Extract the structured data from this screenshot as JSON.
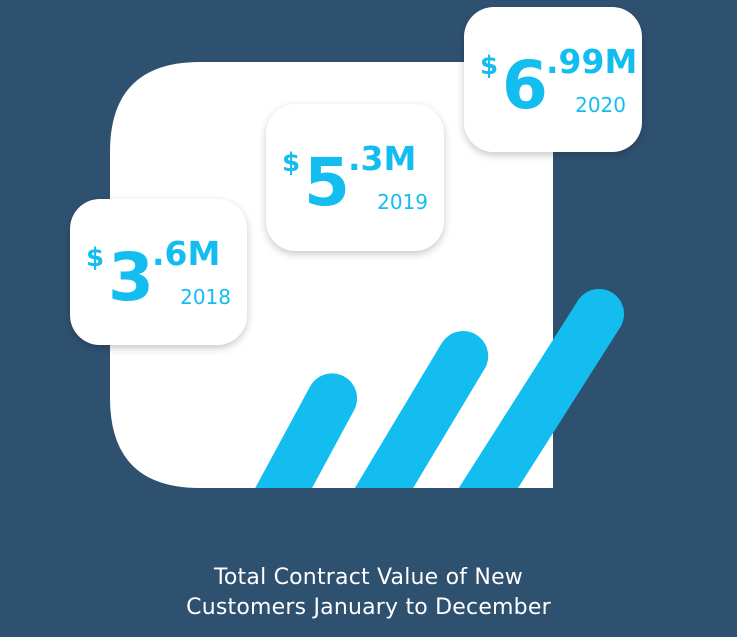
{
  "chart_data": {
    "type": "bar",
    "title": "Total Contract Value of New Customers January to December",
    "title_lines": [
      "Total Contract Value of New",
      "Customers January to December"
    ],
    "categories": [
      "2018",
      "2019",
      "2020"
    ],
    "values": [
      3.6,
      5.3,
      6.99
    ],
    "value_labels": [
      {
        "currency": "$",
        "whole": "3",
        "fraction": ".6",
        "unit": "M",
        "year": "2018"
      },
      {
        "currency": "$",
        "whole": "5",
        "fraction": ".3",
        "unit": "M",
        "year": "2019"
      },
      {
        "currency": "$",
        "whole": "6",
        "fraction": ".99",
        "unit": "M",
        "year": "2020"
      }
    ],
    "unit": "M",
    "currency": "$",
    "colors": {
      "background": "#2f5170",
      "panel": "#ffffff",
      "accent": "#13bdf0"
    }
  }
}
